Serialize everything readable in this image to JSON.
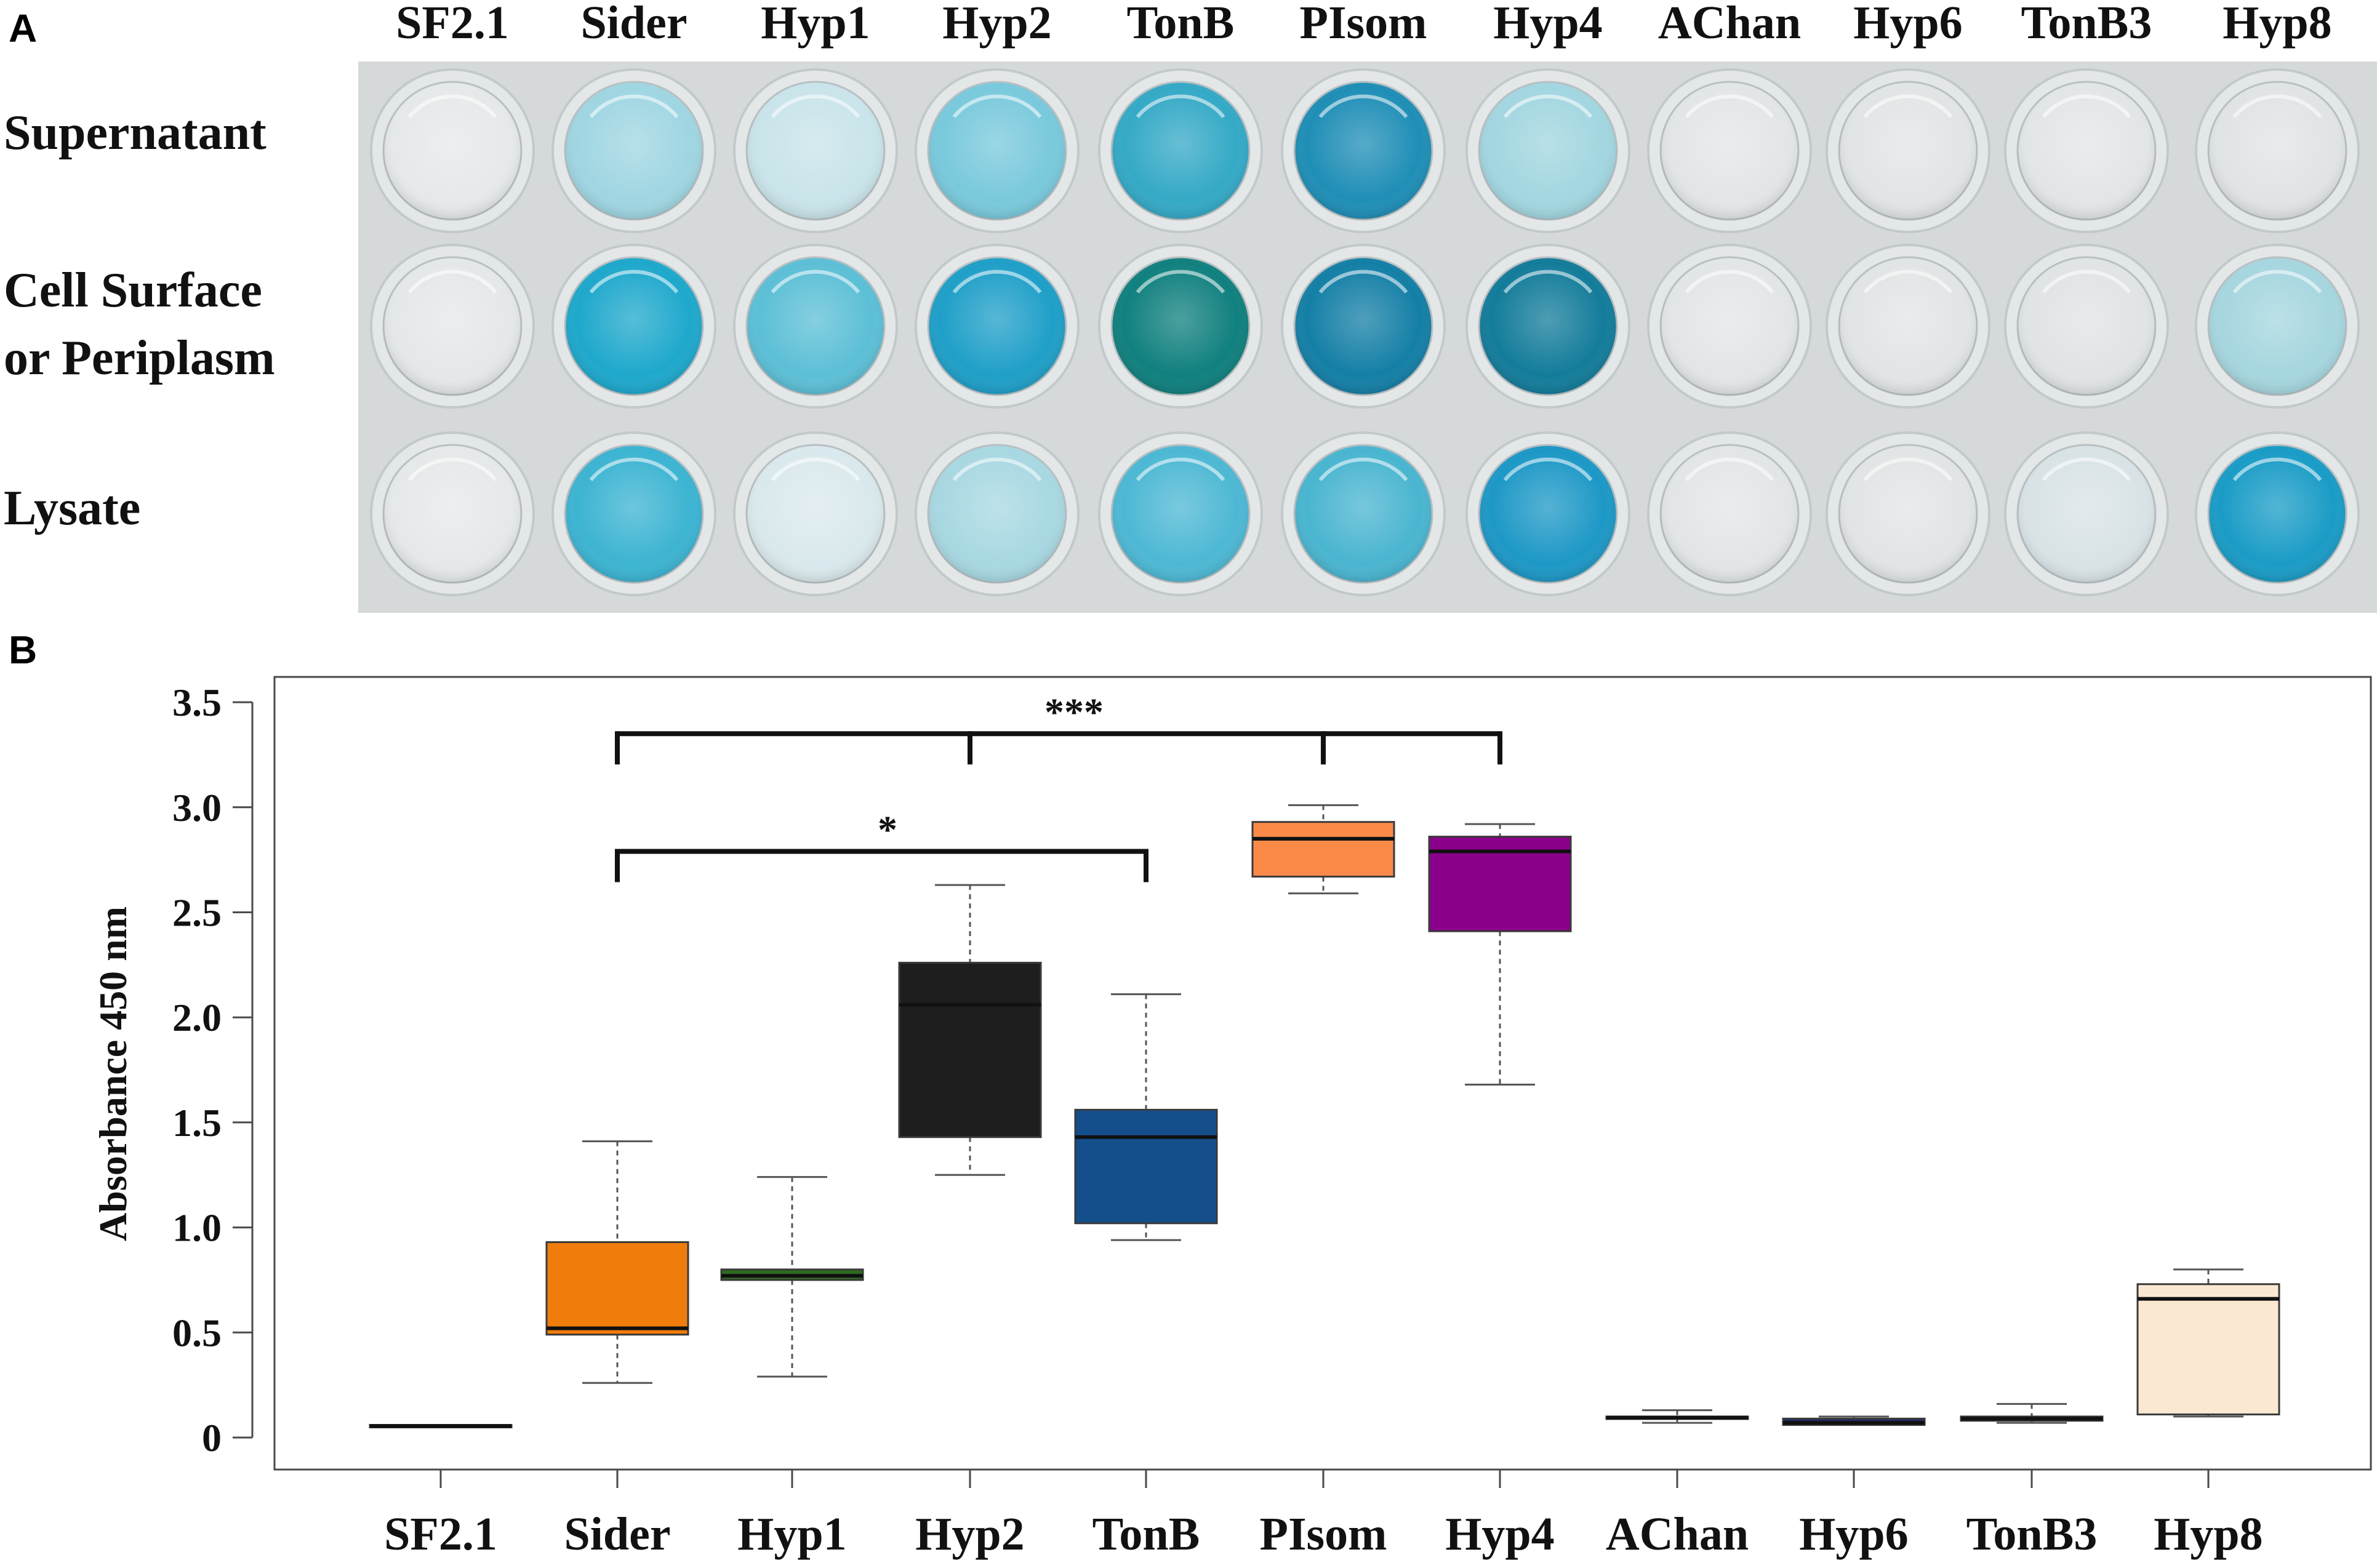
{
  "panels": {
    "a_label": "A",
    "b_label": "B"
  },
  "panel_a": {
    "columns": [
      "SF2.1",
      "Sider",
      "Hyp1",
      "Hyp2",
      "TonB",
      "PIsom",
      "Hyp4",
      "AChan",
      "Hyp6",
      "TonB3",
      "Hyp8"
    ],
    "rows": [
      {
        "label_lines": [
          "Supernatant"
        ]
      },
      {
        "label_lines": [
          "Cell Surface",
          "or Periplasm"
        ]
      },
      {
        "label_lines": [
          "Lysate"
        ]
      }
    ],
    "well_colors": [
      [
        "#e6e9ea",
        "#9fd6e2",
        "#c9e4ea",
        "#79c9dc",
        "#34a9c6",
        "#1f8eb6",
        "#a2d6e0",
        "#e3e6e7",
        "#e2e5e6",
        "#e3e6e7",
        "#e1e4e5"
      ],
      [
        "#e5e8e9",
        "#1ea8cc",
        "#5cbfd6",
        "#1f9fc8",
        "#10807e",
        "#147fa6",
        "#137c9a",
        "#e3e6e7",
        "#e2e5e6",
        "#e0e4e5",
        "#a6d6df"
      ],
      [
        "#e6e9ea",
        "#3cb4d2",
        "#dae9ed",
        "#a8d8e2",
        "#4db8d4",
        "#4ab5d0",
        "#1d98c6",
        "#e3e6e7",
        "#e2e5e6",
        "#d9e3e6",
        "#1a9cc6"
      ]
    ]
  },
  "chart_data": {
    "type": "boxplot",
    "categories": [
      "SF2.1",
      "Sider",
      "Hyp1",
      "Hyp2",
      "TonB",
      "PIsom",
      "Hyp4",
      "AChan",
      "Hyp6",
      "TonB3",
      "Hyp8"
    ],
    "ylabel": "Absorbance 450 nm",
    "ylim": [
      0,
      3.6
    ],
    "yticks": [
      0,
      0.5,
      1.0,
      1.5,
      2.0,
      2.5,
      3.0,
      3.5
    ],
    "ytick_labels": [
      "0",
      "0.5",
      "1.0",
      "1.5",
      "2.0",
      "2.5",
      "3.0",
      "3.5"
    ],
    "boxes": [
      {
        "category": "SF2.1",
        "whisker_low": 0.05,
        "q1": 0.05,
        "median": 0.055,
        "q3": 0.06,
        "whisker_high": 0.06,
        "color": "#2a2a2a"
      },
      {
        "category": "Sider",
        "whisker_low": 0.26,
        "q1": 0.49,
        "median": 0.52,
        "q3": 0.93,
        "whisker_high": 1.41,
        "color": "#f07c0c"
      },
      {
        "category": "Hyp1",
        "whisker_low": 0.29,
        "q1": 0.75,
        "median": 0.77,
        "q3": 0.8,
        "whisker_high": 1.24,
        "color": "#2d6a1e"
      },
      {
        "category": "Hyp2",
        "whisker_low": 1.25,
        "q1": 1.43,
        "median": 2.06,
        "q3": 2.26,
        "whisker_high": 2.63,
        "color": "#1e1e1e"
      },
      {
        "category": "TonB",
        "whisker_low": 0.94,
        "q1": 1.02,
        "median": 1.43,
        "q3": 1.56,
        "whisker_high": 2.11,
        "color": "#144f8c"
      },
      {
        "category": "PIsom",
        "whisker_low": 2.59,
        "q1": 2.67,
        "median": 2.85,
        "q3": 2.93,
        "whisker_high": 3.01,
        "color": "#fb8a48"
      },
      {
        "category": "Hyp4",
        "whisker_low": 1.68,
        "q1": 2.41,
        "median": 2.79,
        "q3": 2.86,
        "whisker_high": 2.92,
        "color": "#8b008b"
      },
      {
        "category": "AChan",
        "whisker_low": 0.07,
        "q1": 0.09,
        "median": 0.095,
        "q3": 0.1,
        "whisker_high": 0.13,
        "color": "#1b1b1b"
      },
      {
        "category": "Hyp6",
        "whisker_low": 0.06,
        "q1": 0.06,
        "median": 0.07,
        "q3": 0.09,
        "whisker_high": 0.1,
        "color": "#1f2b66"
      },
      {
        "category": "TonB3",
        "whisker_low": 0.07,
        "q1": 0.08,
        "median": 0.09,
        "q3": 0.1,
        "whisker_high": 0.16,
        "color": "#27306e"
      },
      {
        "category": "Hyp8",
        "whisker_low": 0.1,
        "q1": 0.11,
        "median": 0.66,
        "q3": 0.73,
        "whisker_high": 0.8,
        "color": "#fbe8d2"
      }
    ],
    "significance": [
      {
        "label": "***",
        "from": "Sider",
        "to": [
          "Hyp2",
          "PIsom",
          "Hyp4"
        ],
        "y": 3.35
      },
      {
        "label": "*",
        "from": "Sider",
        "to": [
          "TonB"
        ],
        "y": 2.79
      }
    ]
  }
}
